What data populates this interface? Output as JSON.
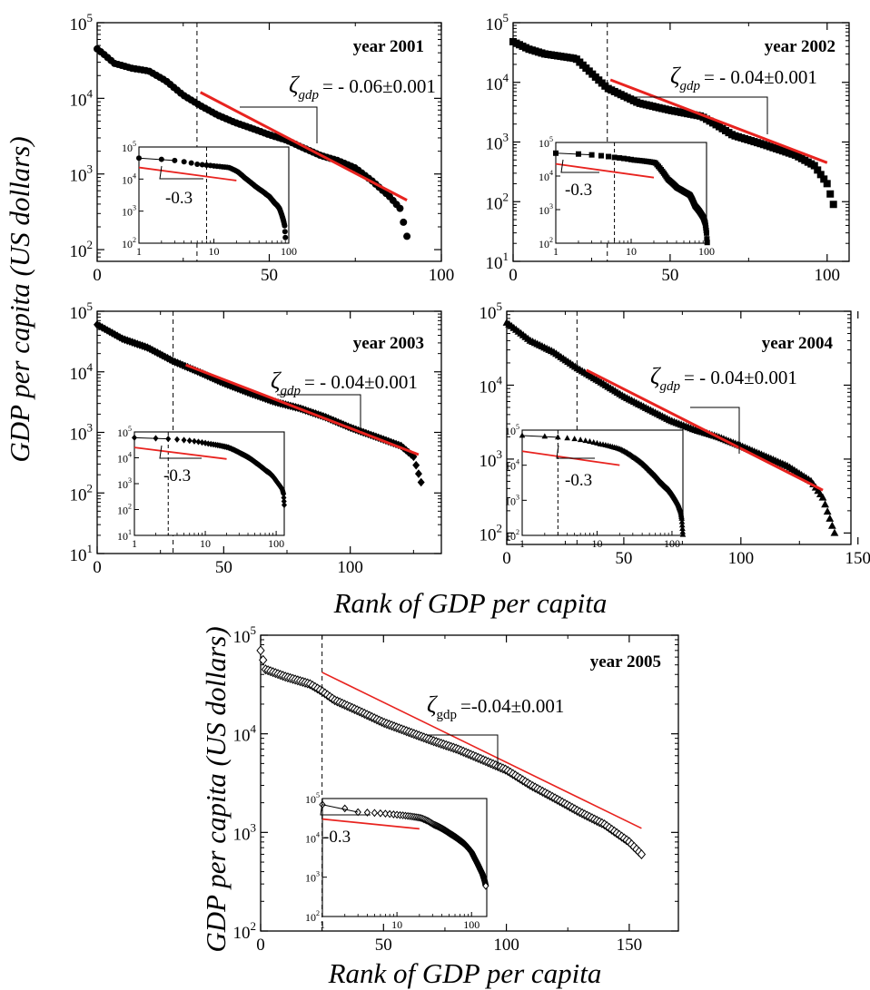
{
  "figure": {
    "ylabel": "GDP per capita (US dollars)",
    "xlabel": "Rank of GDP per capita"
  },
  "chart_data": [
    {
      "type": "scatter",
      "title": "year 2001",
      "xlabel": "Rank of GDP per capita",
      "ylabel": "GDP per capita (US dollars)",
      "xlim": [
        0,
        100
      ],
      "xticks": [
        0,
        50,
        100
      ],
      "xtick_labels": [
        "0",
        "50",
        "100"
      ],
      "ylim": [
        70,
        100000
      ],
      "yscale": "log",
      "yticks": [
        100,
        1000,
        10000,
        100000
      ],
      "ytick_labels": [
        {
          "base": "10",
          "exp": "2"
        },
        {
          "base": "10",
          "exp": "3"
        },
        {
          "base": "10",
          "exp": "4"
        },
        {
          "base": "10",
          "exp": "5"
        }
      ],
      "marker": "circle-filled",
      "n_points": 90,
      "key_points": [
        [
          0,
          45000
        ],
        [
          2,
          38000
        ],
        [
          5,
          29000
        ],
        [
          10,
          25000
        ],
        [
          15,
          23000
        ],
        [
          20,
          17000
        ],
        [
          25,
          11000
        ],
        [
          30,
          8000
        ],
        [
          35,
          6000
        ],
        [
          40,
          4800
        ],
        [
          45,
          4000
        ],
        [
          50,
          3300
        ],
        [
          55,
          2800
        ],
        [
          60,
          2200
        ],
        [
          65,
          1750
        ],
        [
          70,
          1500
        ],
        [
          75,
          1200
        ],
        [
          80,
          800
        ],
        [
          85,
          500
        ],
        [
          88,
          350
        ],
        [
          90,
          150
        ]
      ],
      "fit_line": {
        "x": [
          30,
          90
        ],
        "y": [
          12000,
          450
        ],
        "color": "#e8231f"
      },
      "annotation": {
        "symbol": "ζ",
        "subscript": "gdp",
        "text": "= - 0.06±0.001",
        "slope": -0.06,
        "error": 0.001
      },
      "divider_x": 29,
      "inset": {
        "xlim": [
          1,
          100
        ],
        "xscale": "log",
        "xtick_labels": [
          "1",
          "10",
          "100"
        ],
        "ylim": [
          100,
          100000
        ],
        "yscale": "log",
        "ytick_labels": [
          {
            "base": "10",
            "exp": "2"
          },
          {
            "base": "10",
            "exp": "3"
          },
          {
            "base": "10",
            "exp": "4"
          },
          {
            "base": "10",
            "exp": "5"
          }
        ],
        "fit_label": "-0.3",
        "fit_slope": -0.3,
        "fit_line": {
          "x": [
            1,
            20
          ],
          "y": [
            23000,
            9000
          ]
        },
        "divider_x": 8
      }
    },
    {
      "type": "scatter",
      "title": "year 2002",
      "xlabel": "Rank of GDP per capita",
      "ylabel": "GDP per capita (US dollars)",
      "xlim": [
        0,
        107
      ],
      "xticks": [
        0,
        50,
        100
      ],
      "xtick_labels": [
        "0",
        "50",
        "100"
      ],
      "ylim": [
        10,
        100000
      ],
      "yscale": "log",
      "yticks": [
        10,
        100,
        1000,
        10000,
        100000
      ],
      "ytick_labels": [
        {
          "base": "10",
          "exp": "1"
        },
        {
          "base": "10",
          "exp": "2"
        },
        {
          "base": "10",
          "exp": "3"
        },
        {
          "base": "10",
          "exp": "4"
        },
        {
          "base": "10",
          "exp": "5"
        }
      ],
      "marker": "square-filled",
      "n_points": 102,
      "key_points": [
        [
          0,
          48000
        ],
        [
          5,
          36000
        ],
        [
          10,
          30000
        ],
        [
          20,
          25000
        ],
        [
          30,
          8000
        ],
        [
          40,
          4500
        ],
        [
          50,
          3400
        ],
        [
          60,
          2700
        ],
        [
          65,
          1900
        ],
        [
          70,
          1300
        ],
        [
          80,
          900
        ],
        [
          90,
          600
        ],
        [
          96,
          400
        ],
        [
          100,
          200
        ],
        [
          102,
          90
        ]
      ],
      "fit_line": {
        "x": [
          31,
          100
        ],
        "y": [
          11000,
          450
        ],
        "color": "#e8231f"
      },
      "annotation": {
        "symbol": "ζ",
        "subscript": "gdp",
        "text": "= - 0.04±0.001",
        "slope": -0.04,
        "error": 0.001
      },
      "divider_x": 30,
      "inset": {
        "xlim": [
          1,
          100
        ],
        "xscale": "log",
        "xtick_labels": [
          "1",
          "10",
          "100"
        ],
        "ylim": [
          100,
          100000
        ],
        "yscale": "log",
        "ytick_labels": [
          {
            "base": "10",
            "exp": "2"
          },
          {
            "base": "10",
            "exp": "3"
          },
          {
            "base": "10",
            "exp": "4"
          },
          {
            "base": "10",
            "exp": "5"
          }
        ],
        "fit_label": "-0.3",
        "fit_slope": -0.3,
        "fit_line": {
          "x": [
            1,
            20
          ],
          "y": [
            23000,
            9000
          ]
        },
        "divider_x": 6
      }
    },
    {
      "type": "scatter",
      "title": "year 2003",
      "xlabel": "Rank of GDP per capita",
      "ylabel": "GDP per capita (US dollars)",
      "xlim": [
        0,
        136
      ],
      "xticks": [
        0,
        50,
        100
      ],
      "xtick_labels": [
        "0",
        "50",
        "100"
      ],
      "ylim": [
        10,
        100000
      ],
      "yscale": "log",
      "yticks": [
        10,
        100,
        1000,
        10000,
        100000
      ],
      "ytick_labels": [
        {
          "base": "10",
          "exp": "1"
        },
        {
          "base": "10",
          "exp": "2"
        },
        {
          "base": "10",
          "exp": "3"
        },
        {
          "base": "10",
          "exp": "4"
        },
        {
          "base": "10",
          "exp": "5"
        }
      ],
      "marker": "diamond-filled",
      "n_points": 130,
      "key_points": [
        [
          0,
          60000
        ],
        [
          10,
          35000
        ],
        [
          20,
          25000
        ],
        [
          30,
          15000
        ],
        [
          40,
          10000
        ],
        [
          50,
          6500
        ],
        [
          60,
          4500
        ],
        [
          70,
          3200
        ],
        [
          80,
          2500
        ],
        [
          90,
          1800
        ],
        [
          100,
          1200
        ],
        [
          110,
          850
        ],
        [
          120,
          600
        ],
        [
          125,
          400
        ],
        [
          128,
          150
        ]
      ],
      "fit_line": {
        "x": [
          35,
          127
        ],
        "y": [
          13000,
          430
        ],
        "color": "#e8231f"
      },
      "annotation": {
        "symbol": "ζ",
        "subscript": "gdp",
        "text": "= - 0.04±0.001",
        "slope": -0.04,
        "error": 0.001
      },
      "divider_x": 30,
      "inset": {
        "xlim": [
          1,
          130
        ],
        "xscale": "log",
        "xtick_labels": [
          "1",
          "10",
          "100"
        ],
        "ylim": [
          10,
          100000
        ],
        "yscale": "log",
        "ytick_labels": [
          {
            "base": "10",
            "exp": "1"
          },
          {
            "base": "10",
            "exp": "2"
          },
          {
            "base": "10",
            "exp": "3"
          },
          {
            "base": "10",
            "exp": "4"
          },
          {
            "base": "10",
            "exp": "5"
          }
        ],
        "fit_label": "-0.3",
        "fit_slope": -0.3,
        "fit_line": {
          "x": [
            1,
            20
          ],
          "y": [
            25000,
            9000
          ]
        },
        "divider_x": 3
      }
    },
    {
      "type": "scatter",
      "title": "year 2004",
      "xlabel": "Rank of GDP per capita",
      "ylabel": "GDP per capita (US dollars)",
      "xlim": [
        0,
        147
      ],
      "xticks": [
        0,
        50,
        100,
        150
      ],
      "xtick_labels": [
        "0",
        "50",
        "100",
        "150"
      ],
      "ylim": [
        70,
        100000
      ],
      "yscale": "log",
      "yticks": [
        100,
        1000,
        10000,
        100000
      ],
      "ytick_labels": [
        {
          "base": "10",
          "exp": "2"
        },
        {
          "base": "10",
          "exp": "3"
        },
        {
          "base": "10",
          "exp": "4"
        },
        {
          "base": "10",
          "exp": "5"
        }
      ],
      "marker": "triangle-filled",
      "n_points": 140,
      "key_points": [
        [
          0,
          70000
        ],
        [
          10,
          40000
        ],
        [
          20,
          28000
        ],
        [
          30,
          17000
        ],
        [
          40,
          11000
        ],
        [
          50,
          7000
        ],
        [
          60,
          4800
        ],
        [
          70,
          3300
        ],
        [
          80,
          2500
        ],
        [
          90,
          2000
        ],
        [
          100,
          1500
        ],
        [
          110,
          1100
        ],
        [
          120,
          800
        ],
        [
          130,
          500
        ],
        [
          135,
          300
        ],
        [
          140,
          100
        ]
      ],
      "fit_line": {
        "x": [
          34,
          135
        ],
        "y": [
          16000,
          380
        ],
        "color": "#e8231f"
      },
      "annotation": {
        "symbol": "ζ",
        "subscript": "gdp",
        "text": "= - 0.04±0.001",
        "slope": -0.04,
        "error": 0.001
      },
      "divider_x": 30,
      "inset": {
        "xlim": [
          1,
          140
        ],
        "xscale": "log",
        "xtick_labels": [
          "1",
          "10",
          "100"
        ],
        "ylim": [
          100,
          100000
        ],
        "yscale": "log",
        "ytick_labels": [
          {
            "base": "10",
            "exp": "2"
          },
          {
            "base": "10",
            "exp": "3"
          },
          {
            "base": "10",
            "exp": "4"
          },
          {
            "base": "10",
            "exp": "5"
          }
        ],
        "fit_label": "-0.3",
        "fit_slope": -0.3,
        "fit_line": {
          "x": [
            1,
            20
          ],
          "y": [
            25000,
            10000
          ]
        },
        "divider_x": 3
      }
    },
    {
      "type": "scatter",
      "title": "year 2005",
      "xlabel": "Rank of GDP per capita",
      "ylabel": "GDP per capita (US dollars)",
      "xlim": [
        0,
        170
      ],
      "xticks": [
        0,
        50,
        100,
        150
      ],
      "xtick_labels": [
        "0",
        "50",
        "100",
        "150"
      ],
      "ylim": [
        100,
        100000
      ],
      "yscale": "log",
      "yticks": [
        100,
        1000,
        10000,
        100000
      ],
      "ytick_labels": [
        {
          "base": "10",
          "exp": "2"
        },
        {
          "base": "10",
          "exp": "3"
        },
        {
          "base": "10",
          "exp": "4"
        },
        {
          "base": "10",
          "exp": "5"
        }
      ],
      "marker": "diamond-open",
      "n_points": 155,
      "key_points": [
        [
          0,
          70000
        ],
        [
          2,
          45000
        ],
        [
          10,
          38000
        ],
        [
          20,
          32000
        ],
        [
          25,
          27000
        ],
        [
          30,
          22000
        ],
        [
          40,
          17000
        ],
        [
          50,
          13000
        ],
        [
          60,
          10500
        ],
        [
          70,
          8500
        ],
        [
          80,
          7000
        ],
        [
          90,
          5500
        ],
        [
          100,
          4300
        ],
        [
          110,
          3000
        ],
        [
          120,
          2200
        ],
        [
          130,
          1600
        ],
        [
          140,
          1200
        ],
        [
          150,
          800
        ],
        [
          155,
          600
        ]
      ],
      "fit_line": {
        "x": [
          25,
          155
        ],
        "y": [
          42000,
          1100
        ],
        "color": "#e8231f"
      },
      "annotation": {
        "symbol": "ζ",
        "subscript": "gdp",
        "text": "=-0.04±0.001",
        "slope": -0.04,
        "error": 0.001
      },
      "divider_x": 25,
      "inset": {
        "xlim": [
          1,
          160
        ],
        "xscale": "log",
        "xtick_labels": [
          "1",
          "10",
          "100"
        ],
        "ylim": [
          100,
          100000
        ],
        "yscale": "log",
        "ytick_labels": [
          {
            "base": "10",
            "exp": "2"
          },
          {
            "base": "10",
            "exp": "3"
          },
          {
            "base": "10",
            "exp": "4"
          },
          {
            "base": "10",
            "exp": "5"
          }
        ],
        "fit_label": "-0.3",
        "fit_slope": -0.3,
        "fit_line": {
          "x": [
            1,
            20
          ],
          "y": [
            30000,
            17000
          ]
        },
        "divider_x": null
      }
    }
  ]
}
